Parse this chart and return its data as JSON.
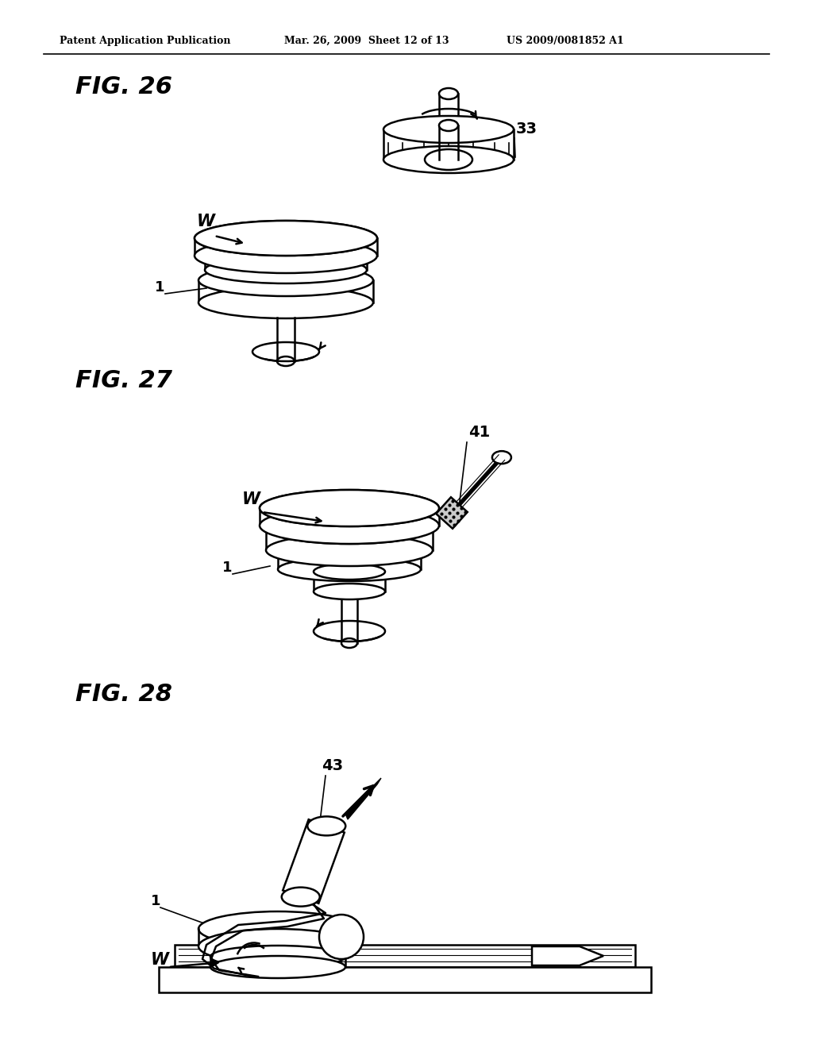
{
  "background_color": "#ffffff",
  "header_left": "Patent Application Publication",
  "header_mid": "Mar. 26, 2009  Sheet 12 of 13",
  "header_right": "US 2009/0081852 A1",
  "fig26_label": "FIG. 26",
  "fig27_label": "FIG. 27",
  "fig28_label": "FIG. 28",
  "label_1a": "1",
  "label_W_fig26": "W",
  "label_33": "33",
  "label_W_fig27": "W",
  "label_41": "41",
  "label_1b": "1",
  "label_W_fig28": "W",
  "label_1c": "1",
  "label_43": "43",
  "line_color": "#000000",
  "text_color": "#000000"
}
